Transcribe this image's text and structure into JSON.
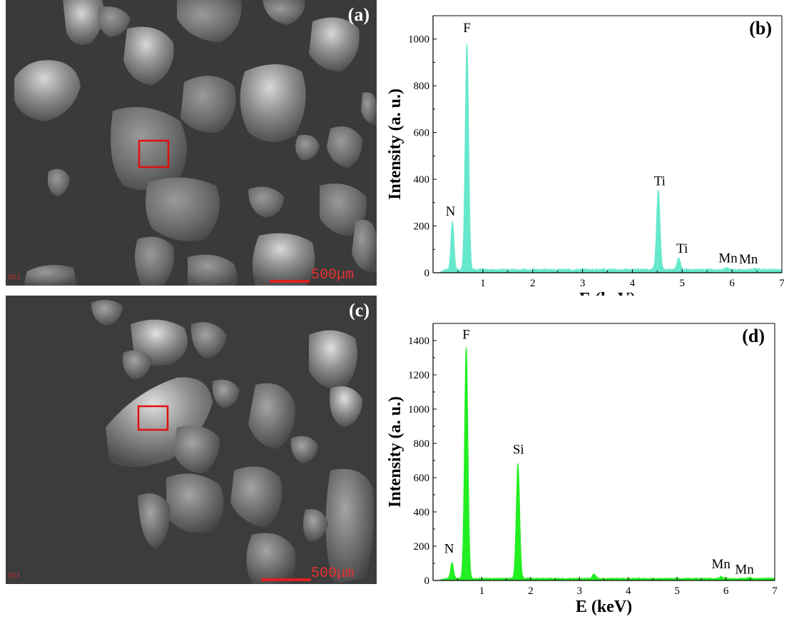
{
  "panels": {
    "a": {
      "label": "(a)",
      "scalebar": "500µm",
      "detector": "SEI"
    },
    "c": {
      "label": "(c)",
      "scalebar": "500µm",
      "detector": "SEI"
    }
  },
  "chart_data": [
    {
      "panel": "(b)",
      "type": "area",
      "color": "#66e8cc",
      "xlabel": "E (keV)",
      "ylabel": "Intensity (a. u.)",
      "xlim": [
        0,
        7
      ],
      "ylim": [
        0,
        1100
      ],
      "xticks": [
        1,
        2,
        3,
        4,
        5,
        6,
        7
      ],
      "yticks": [
        0,
        200,
        400,
        600,
        800,
        1000
      ],
      "peaks": [
        {
          "label": "N",
          "x": 0.39,
          "y": 210
        },
        {
          "label": "F",
          "x": 0.68,
          "y": 970
        },
        {
          "label": "Ti",
          "x": 4.52,
          "y": 340
        },
        {
          "label": "Ti",
          "x": 4.93,
          "y": 50
        },
        {
          "label": "Mn",
          "x": 5.9,
          "y": 8
        },
        {
          "label": "Mn",
          "x": 6.49,
          "y": 6
        }
      ],
      "annotations": [
        {
          "text": "N",
          "x": 0.35,
          "y": 245
        },
        {
          "text": "F",
          "x": 0.68,
          "y": 1030
        },
        {
          "text": "Ti",
          "x": 4.55,
          "y": 375
        },
        {
          "text": "Ti",
          "x": 5.0,
          "y": 85
        },
        {
          "text": "Mn",
          "x": 5.92,
          "y": 45
        },
        {
          "text": "Mn",
          "x": 6.33,
          "y": 40
        }
      ],
      "baseline": 12
    },
    {
      "panel": "(d)",
      "type": "area",
      "color": "#22ee22",
      "xlabel": "E (keV)",
      "ylabel": "Intensity (a. u.)",
      "xlim": [
        0,
        7
      ],
      "ylim": [
        0,
        1500
      ],
      "xticks": [
        1,
        2,
        3,
        4,
        5,
        6,
        7
      ],
      "yticks": [
        0,
        200,
        400,
        600,
        800,
        1000,
        1200,
        1400
      ],
      "peaks": [
        {
          "label": "N",
          "x": 0.39,
          "y": 95
        },
        {
          "label": "F",
          "x": 0.68,
          "y": 1350
        },
        {
          "label": "Si",
          "x": 1.74,
          "y": 670
        },
        {
          "label": "",
          "x": 3.3,
          "y": 25
        },
        {
          "label": "Mn",
          "x": 5.9,
          "y": 12
        },
        {
          "label": "Mn",
          "x": 6.49,
          "y": 8
        }
      ],
      "annotations": [
        {
          "text": "N",
          "x": 0.33,
          "y": 160
        },
        {
          "text": "F",
          "x": 0.68,
          "y": 1410
        },
        {
          "text": "Si",
          "x": 1.75,
          "y": 740
        },
        {
          "text": "Mn",
          "x": 5.9,
          "y": 70
        },
        {
          "text": "Mn",
          "x": 6.38,
          "y": 40
        }
      ],
      "baseline": 10
    }
  ]
}
